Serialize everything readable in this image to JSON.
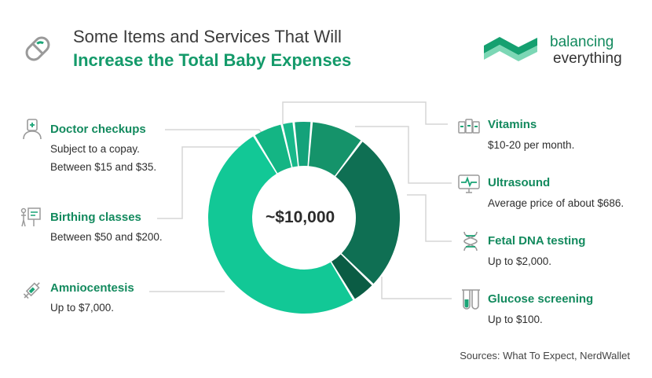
{
  "header": {
    "title_line1": "Some Items and Services That Will",
    "title_line2": "Increase the Total Baby Expenses",
    "icon": "pill-icon"
  },
  "brand": {
    "line1": "balancing",
    "line2": "everything",
    "logo": "balancing-everything-logo",
    "color": "#1aa476"
  },
  "chart_data": {
    "type": "pie",
    "style": "donut",
    "center_label": "~$10,000",
    "slices": [
      {
        "label": "Vitamins",
        "value": 9,
        "color": "#15936a"
      },
      {
        "label": "Ultrasound",
        "value": 27,
        "color": "#0f6f53"
      },
      {
        "label": "Fetal DNA testing",
        "value": 4,
        "color": "#0b5c44"
      },
      {
        "label": "Amniocentesis",
        "value": 50,
        "color": "#12c896"
      },
      {
        "label": "Birthing classes",
        "value": 5,
        "color": "#14b584"
      },
      {
        "label": "Doctor checkups",
        "value": 2,
        "color": "#18b88a"
      },
      {
        "label": "Glucose screening",
        "value": 3,
        "color": "#14a27a"
      }
    ]
  },
  "items": {
    "doctor": {
      "label": "Doctor checkups",
      "lines": [
        "Subject to a copay.",
        "Between $15 and $35."
      ],
      "icon": "doctor-icon"
    },
    "birthing": {
      "label": "Birthing classes",
      "lines": [
        "Between $50 and $200."
      ],
      "icon": "presentation-icon"
    },
    "amnio": {
      "label": "Amniocentesis",
      "lines": [
        "Up to $7,000."
      ],
      "icon": "syringe-icon"
    },
    "vitamins": {
      "label": "Vitamins",
      "lines": [
        "$10-20 per month."
      ],
      "icon": "vitamin-bottles-icon"
    },
    "ultrasound": {
      "label": "Ultrasound",
      "lines": [
        "Average price of about $686."
      ],
      "icon": "ultrasound-monitor-icon"
    },
    "dna": {
      "label": "Fetal DNA testing",
      "lines": [
        "Up to $2,000."
      ],
      "icon": "dna-icon"
    },
    "glucose": {
      "label": "Glucose screening",
      "lines": [
        "Up to $100."
      ],
      "icon": "test-tubes-icon"
    }
  },
  "footer": {
    "sources": "Sources: What To Expect, NerdWallet"
  },
  "colors": {
    "accent": "#149a6a",
    "icon_gray": "#9a9a9a",
    "connector": "#d6d6d6"
  }
}
